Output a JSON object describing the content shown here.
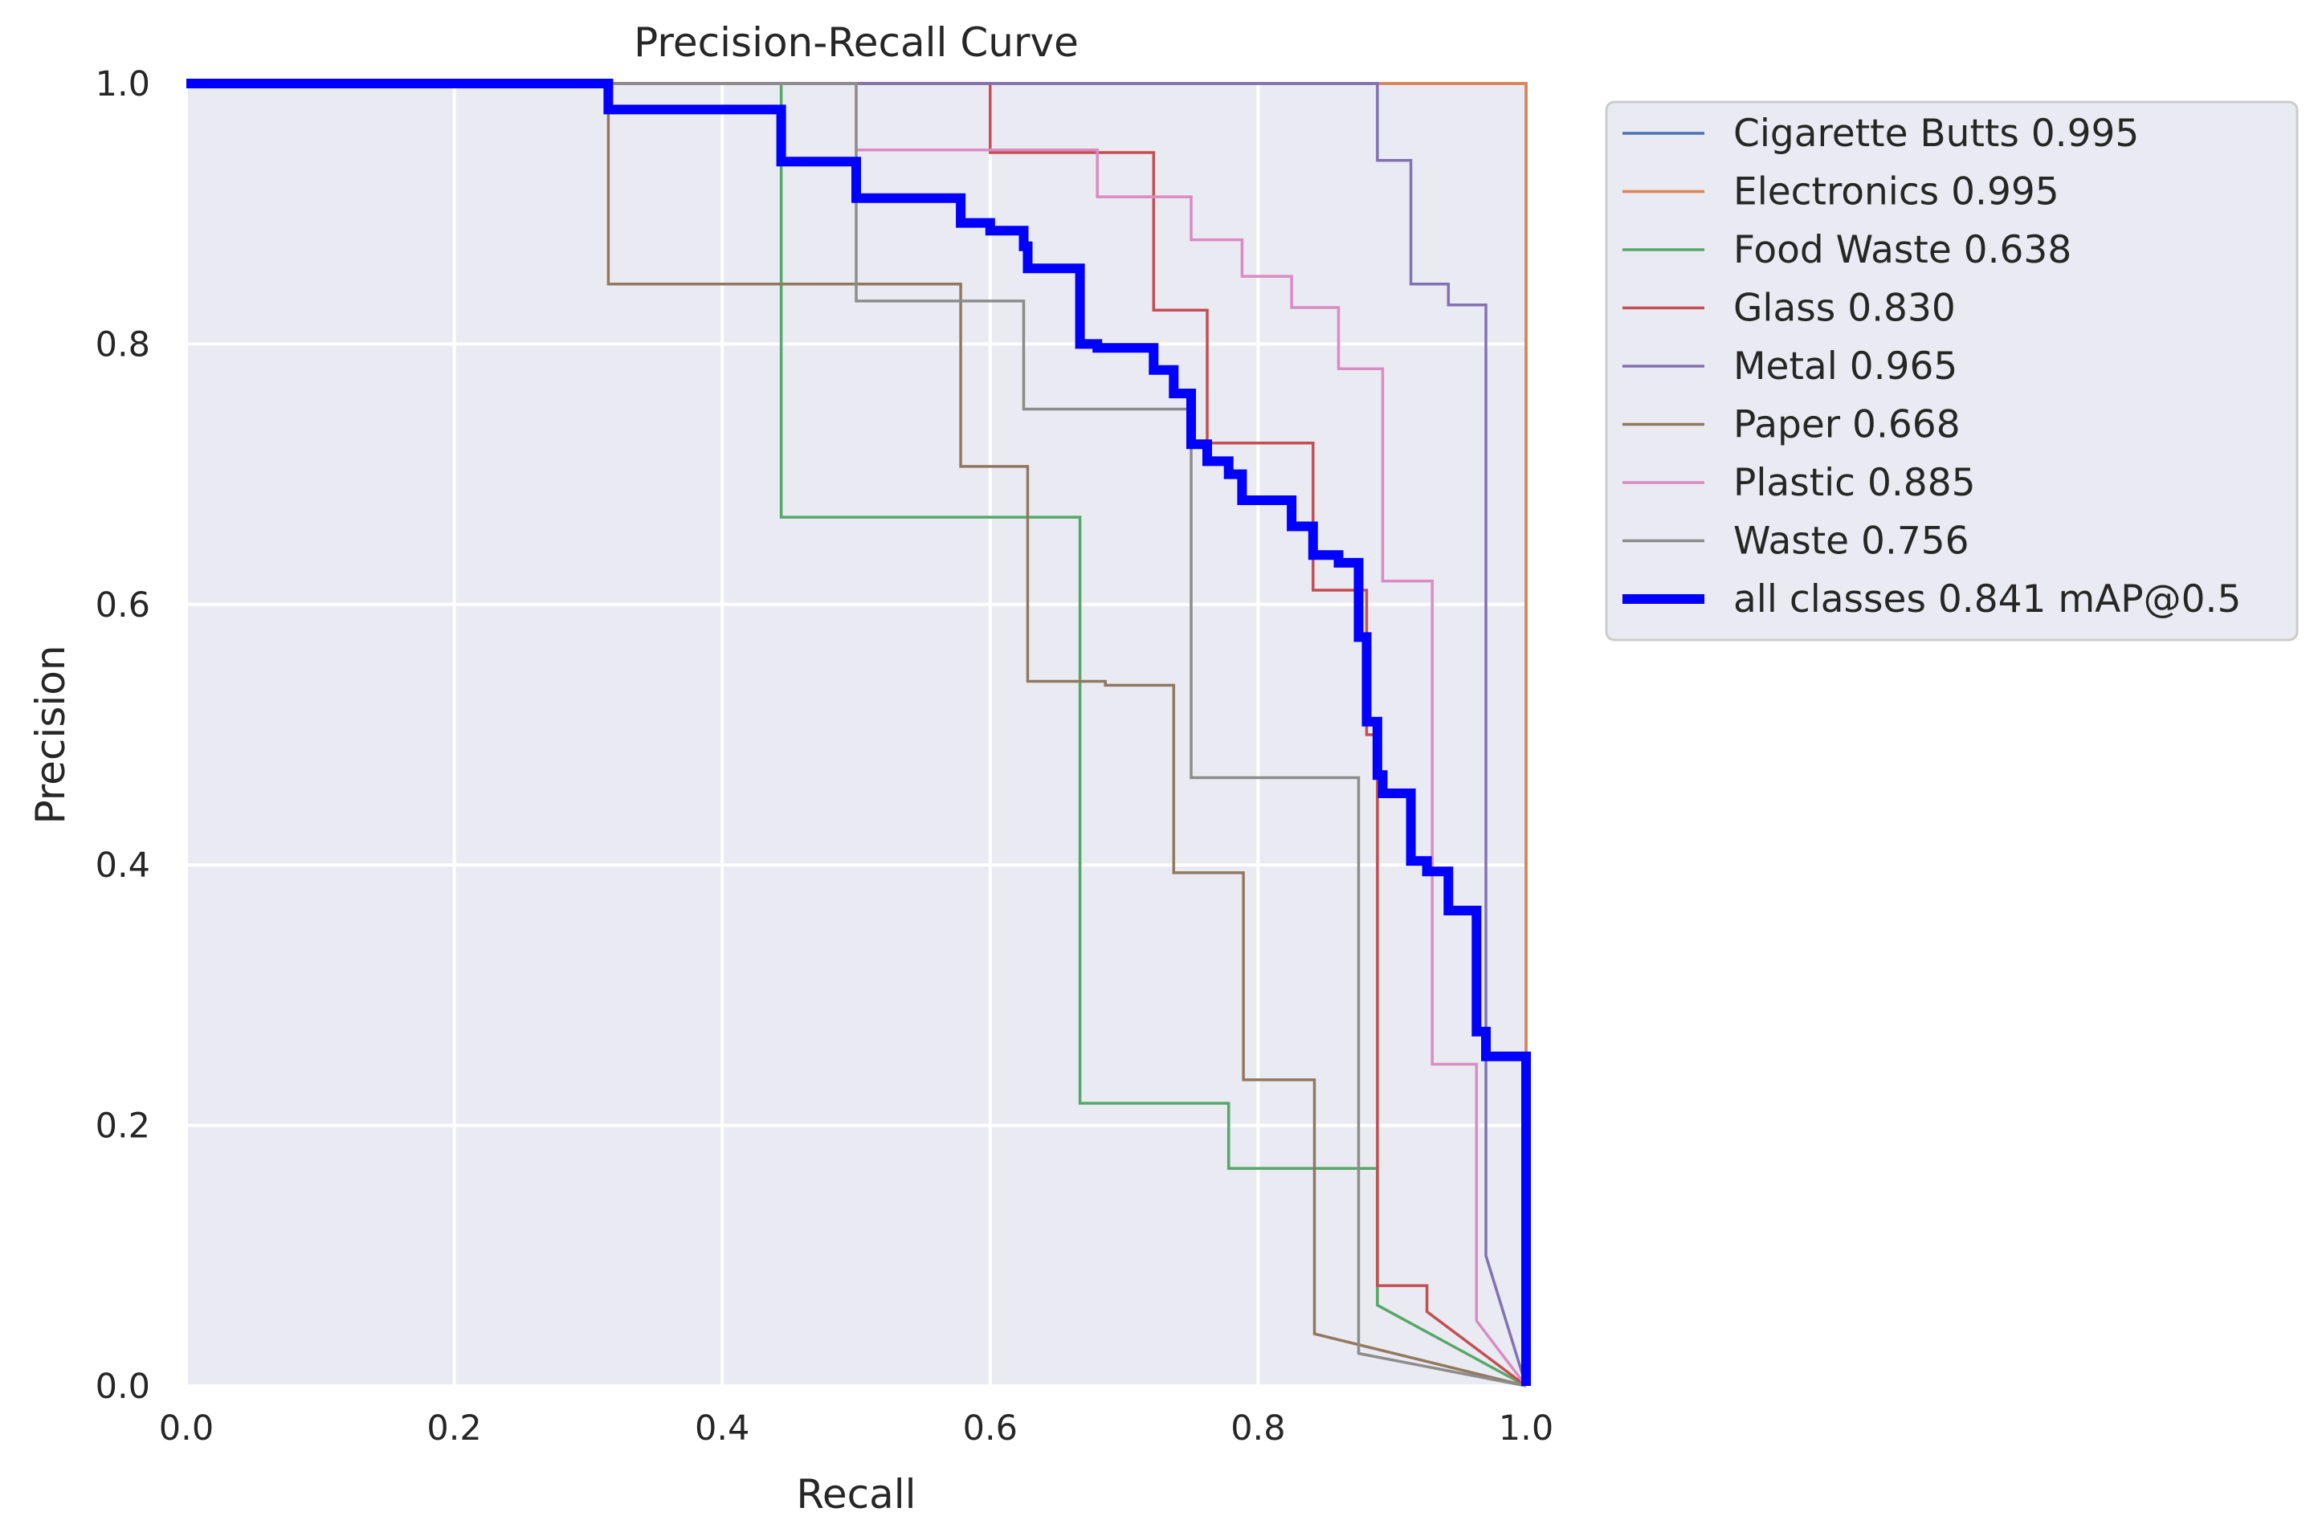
{
  "chart_data": {
    "type": "line",
    "title": "Precision-Recall Curve",
    "xlabel": "Recall",
    "ylabel": "Precision",
    "xlim": [
      0,
      1
    ],
    "ylim": [
      0,
      1
    ],
    "xticks": [
      "0.0",
      "0.2",
      "0.4",
      "0.6",
      "0.8",
      "1.0"
    ],
    "yticks": [
      "0.0",
      "0.2",
      "0.4",
      "0.6",
      "0.8",
      "1.0"
    ],
    "grid": true,
    "legend_position": "outside-right",
    "series": [
      {
        "name": "Cigarette Butts 0.995",
        "color": "#4c72b0",
        "x": [
          0,
          1,
          1
        ],
        "y": [
          1,
          1,
          0
        ]
      },
      {
        "name": "Electronics 0.995",
        "color": "#dd8452",
        "x": [
          0,
          1,
          1
        ],
        "y": [
          1,
          1,
          0
        ]
      },
      {
        "name": "Food Waste 0.638",
        "color": "#55a868",
        "x": [
          0,
          0.444,
          0.444,
          0.667,
          0.667,
          0.778,
          0.778,
          0.889,
          0.889,
          1
        ],
        "y": [
          1,
          1,
          0.667,
          0.667,
          0.217,
          0.217,
          0.167,
          0.167,
          0.062,
          0
        ]
      },
      {
        "name": "Glass 0.830",
        "color": "#c44e52",
        "x": [
          0,
          0.6,
          0.6,
          0.722,
          0.722,
          0.762,
          0.762,
          0.841,
          0.841,
          0.881,
          0.881,
          0.889,
          0.889,
          0.926,
          0.926,
          1
        ],
        "y": [
          1,
          1,
          0.947,
          0.947,
          0.826,
          0.826,
          0.724,
          0.724,
          0.611,
          0.611,
          0.5,
          0.5,
          0.077,
          0.077,
          0.057,
          0
        ]
      },
      {
        "name": "Metal 0.965",
        "color": "#8172b3",
        "x": [
          0,
          0.889,
          0.889,
          0.914,
          0.914,
          0.942,
          0.942,
          0.97,
          0.97,
          1
        ],
        "y": [
          1,
          1,
          0.941,
          0.941,
          0.846,
          0.846,
          0.83,
          0.83,
          0.1,
          0
        ]
      },
      {
        "name": "Paper 0.668",
        "color": "#937860",
        "x": [
          0,
          0.315,
          0.315,
          0.578,
          0.578,
          0.628,
          0.628,
          0.686,
          0.686,
          0.737,
          0.737,
          0.789,
          0.789,
          0.842,
          0.842,
          1
        ],
        "y": [
          1,
          1,
          0.846,
          0.846,
          0.706,
          0.706,
          0.541,
          0.541,
          0.538,
          0.538,
          0.394,
          0.394,
          0.235,
          0.235,
          0.04,
          0
        ]
      },
      {
        "name": "Plastic 0.885",
        "color": "#da8bc3",
        "x": [
          0,
          0.5,
          0.5,
          0.68,
          0.68,
          0.75,
          0.75,
          0.788,
          0.788,
          0.825,
          0.825,
          0.86,
          0.86,
          0.893,
          0.893,
          0.93,
          0.93,
          0.963,
          0.963,
          1
        ],
        "y": [
          1,
          1,
          0.949,
          0.949,
          0.913,
          0.913,
          0.88,
          0.88,
          0.852,
          0.852,
          0.828,
          0.828,
          0.781,
          0.781,
          0.618,
          0.618,
          0.247,
          0.247,
          0.05,
          0
        ]
      },
      {
        "name": "Waste 0.756",
        "color": "#8c8c8c",
        "x": [
          0,
          0.5,
          0.5,
          0.625,
          0.625,
          0.75,
          0.75,
          0.875,
          0.875,
          1
        ],
        "y": [
          1,
          1,
          0.833,
          0.833,
          0.75,
          0.75,
          0.467,
          0.467,
          0.025,
          0
        ]
      },
      {
        "name": "all classes 0.841 mAP@0.5",
        "color": "#0000ff",
        "bold": true,
        "x": [
          0,
          0.315,
          0.315,
          0.444,
          0.444,
          0.5,
          0.5,
          0.578,
          0.578,
          0.6,
          0.6,
          0.625,
          0.625,
          0.628,
          0.628,
          0.667,
          0.667,
          0.68,
          0.68,
          0.722,
          0.722,
          0.737,
          0.737,
          0.75,
          0.75,
          0.762,
          0.762,
          0.778,
          0.778,
          0.788,
          0.788,
          0.825,
          0.825,
          0.841,
          0.841,
          0.86,
          0.86,
          0.875,
          0.875,
          0.881,
          0.881,
          0.889,
          0.889,
          0.893,
          0.893,
          0.914,
          0.914,
          0.926,
          0.926,
          0.942,
          0.942,
          0.963,
          0.963,
          0.97,
          0.97,
          1,
          1
        ],
        "y": [
          1,
          1,
          0.98,
          0.98,
          0.94,
          0.94,
          0.912,
          0.912,
          0.893,
          0.893,
          0.887,
          0.887,
          0.875,
          0.875,
          0.858,
          0.858,
          0.8,
          0.8,
          0.797,
          0.797,
          0.78,
          0.78,
          0.762,
          0.762,
          0.723,
          0.723,
          0.71,
          0.71,
          0.7,
          0.7,
          0.68,
          0.68,
          0.66,
          0.66,
          0.638,
          0.638,
          0.632,
          0.632,
          0.575,
          0.575,
          0.51,
          0.51,
          0.469,
          0.469,
          0.455,
          0.455,
          0.403,
          0.403,
          0.395,
          0.395,
          0.365,
          0.365,
          0.272,
          0.272,
          0.253,
          0.253,
          0
        ]
      }
    ]
  }
}
